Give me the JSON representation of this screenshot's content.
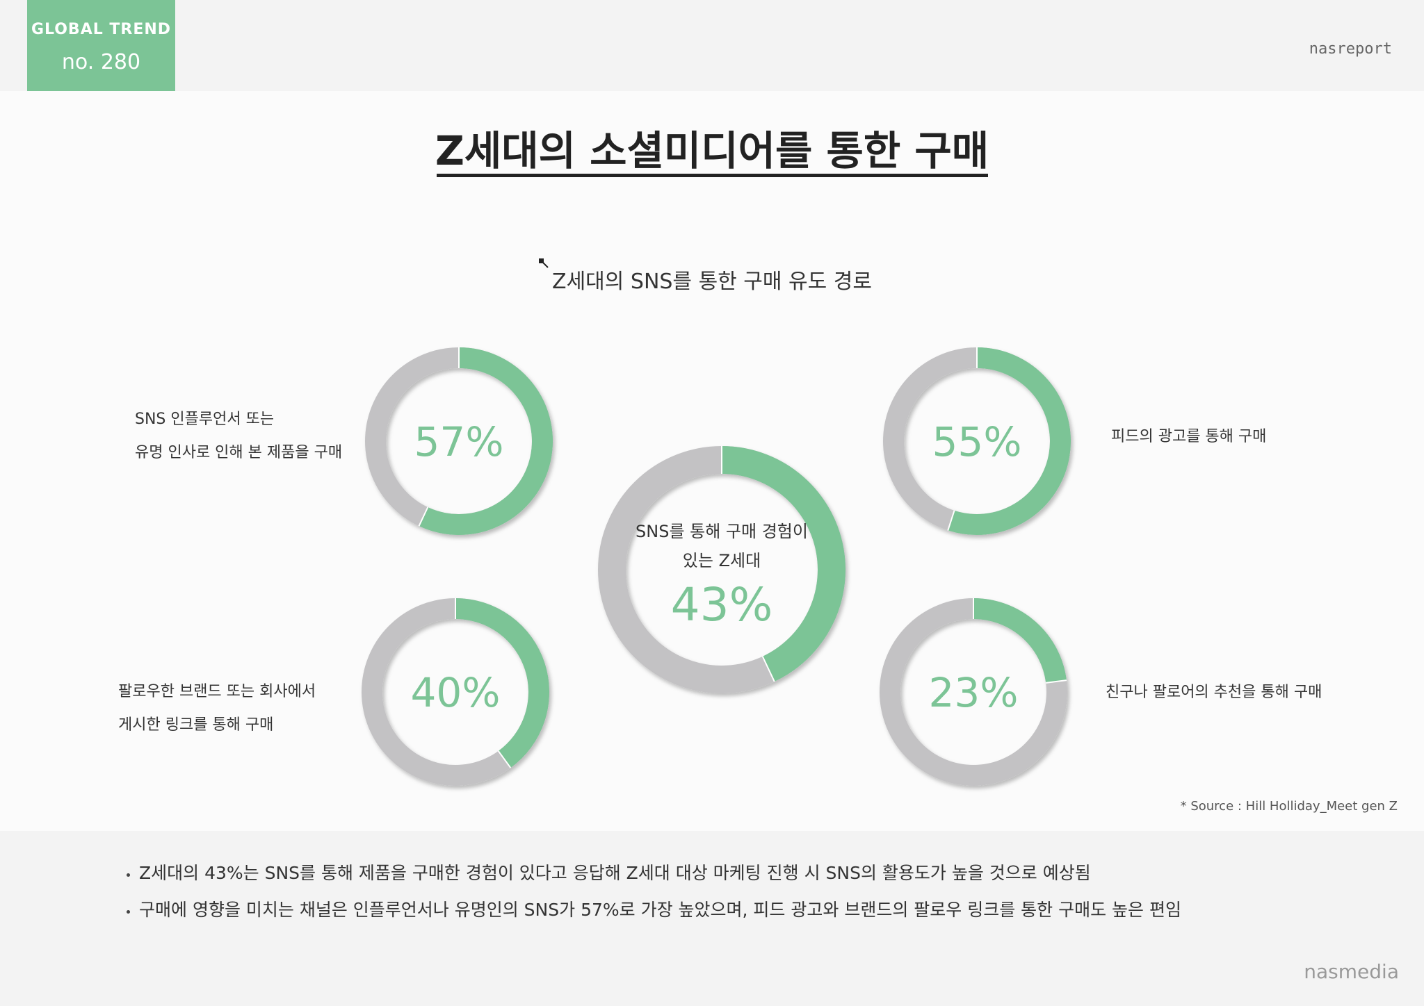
{
  "header": {
    "badge_line1": "GLOBAL TREND",
    "badge_line2": "no. 280",
    "brand": "nasreport"
  },
  "page_title": "Z세대의 소셜미디어를 통한 구매",
  "chart_subtitle": "Z세대의 SNS를 통한 구매 유도 경로",
  "chart_data": {
    "type": "donut",
    "title": "Z세대의 SNS를 통한 구매 유도 경로",
    "center": {
      "label_line1": "SNS를 통해 구매 경험이",
      "label_line2": "있는 Z세대",
      "value": 43,
      "value_label": "43%"
    },
    "series": [
      {
        "name": "SNS 인플루언서 또는 유명 인사로 인해 본 제품을 구매",
        "line1": "SNS 인플루언서 또는",
        "line2": "유명 인사로 인해 본 제품을 구매",
        "value": 57,
        "value_label": "57%"
      },
      {
        "name": "피드의 광고를 통해 구매",
        "line1": "피드의 광고를 통해 구매",
        "line2": "",
        "value": 55,
        "value_label": "55%"
      },
      {
        "name": "팔로우한 브랜드 또는 회사에서 게시한 링크를 통해 구매",
        "line1": "팔로우한 브랜드 또는 회사에서",
        "line2": "게시한 링크를 통해 구매",
        "value": 40,
        "value_label": "40%"
      },
      {
        "name": "친구나 팔로어의 추천을 통해 구매",
        "line1": "친구나 팔로어의 추천을 통해 구매",
        "line2": "",
        "value": 23,
        "value_label": "23%"
      }
    ],
    "max": 100,
    "colors": {
      "fill": "#7cc496",
      "track": "#c3c2c4",
      "value_text": "#7cc496"
    }
  },
  "source": "* Source : Hill Holliday_Meet gen Z",
  "bullets": [
    "Z세대의 43%는 SNS를 통해 제품을 구매한 경험이 있다고 응답해  Z세대 대상 마케팅 진행 시 SNS의 활용도가 높을 것으로 예상됨",
    "구매에 영향을 미치는 채널은 인플루언서나 유명인의 SNS가 57%로 가장 높았으며, 피드 광고와 브랜드의 팔로우 링크를 통한 구매도 높은 편임"
  ],
  "footer_brand": "nasmedia"
}
